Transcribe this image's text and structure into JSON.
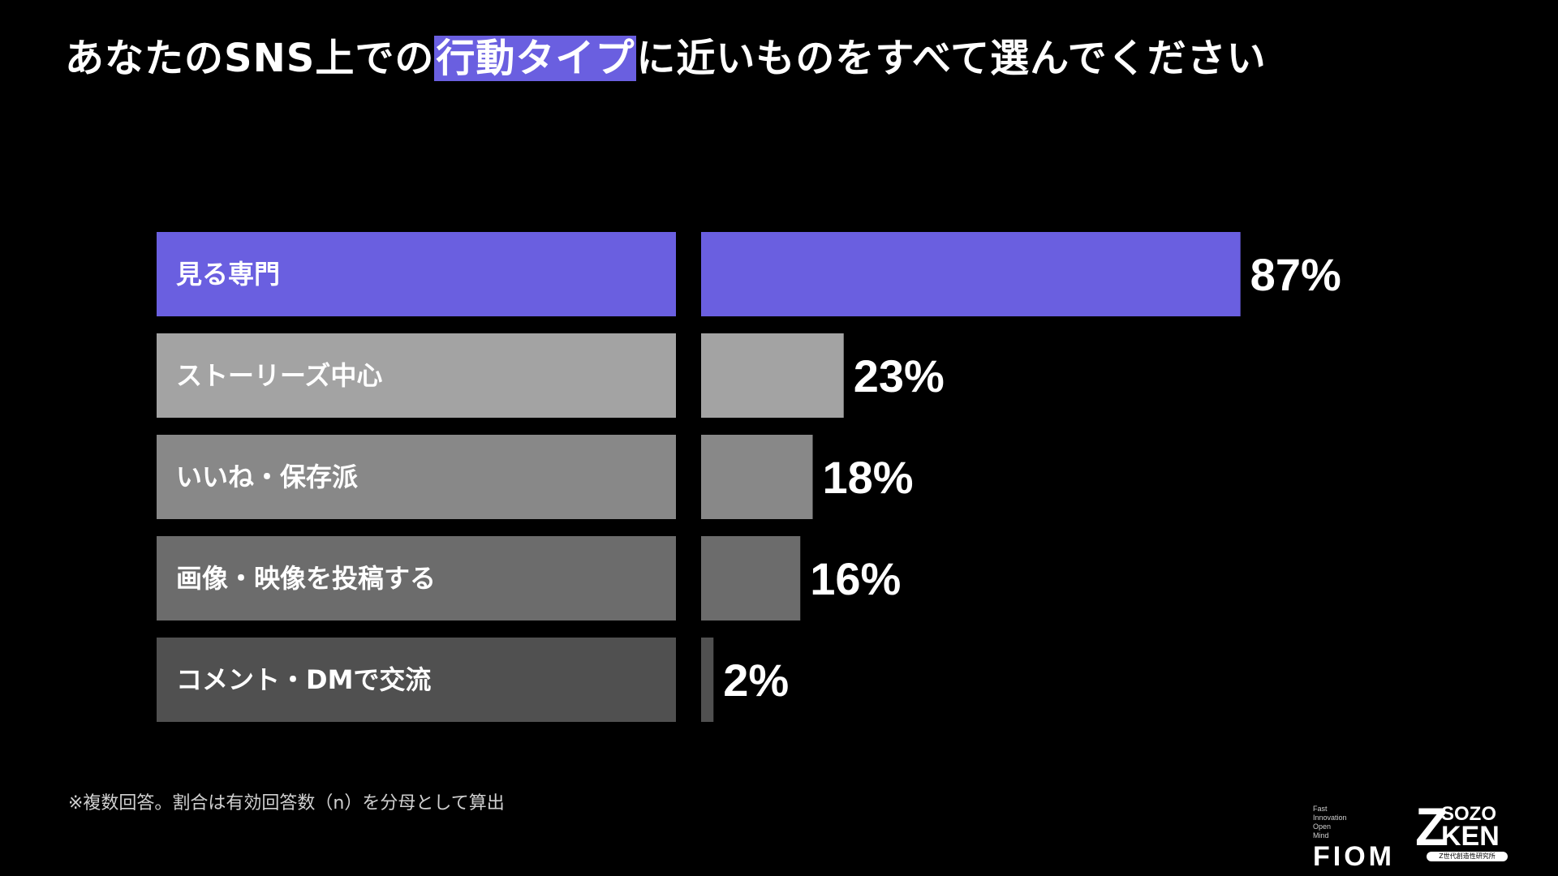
{
  "title": {
    "before": "あなたのSNS上での",
    "highlight": "行動タイプ",
    "after": "に近いものをすべて選んでください"
  },
  "chart_data": {
    "type": "bar",
    "orientation": "horizontal",
    "categories": [
      "見る専門",
      "ストーリーズ中心",
      "いいね・保存派",
      "画像・映像を投稿する",
      "コメント・DMで交流"
    ],
    "values": [
      87,
      23,
      18,
      16,
      2
    ],
    "value_labels": [
      "87%",
      "23%",
      "18%",
      "16%",
      "2%"
    ],
    "colors": [
      "#6a5fe0",
      "#a3a3a3",
      "#888888",
      "#6c6c6c",
      "#505050"
    ],
    "grid": false,
    "legend": "none"
  },
  "footnote": "※複数回答。割合は有効回答数（n）を分母として算出",
  "logos": {
    "fiom_small": [
      "Fast",
      "Innovation",
      "Open",
      "Mind"
    ],
    "fiom_big": "FIOM",
    "sozo_z": "Z",
    "sozo_top": "SOZO",
    "sozo_bottom": "KEN",
    "sozo_sub": "Z世代創造性研究所"
  }
}
